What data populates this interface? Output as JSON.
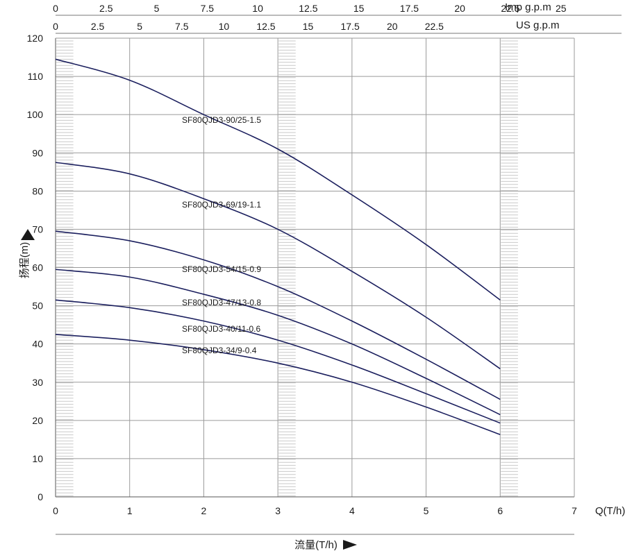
{
  "chart_data": {
    "type": "line",
    "title": "",
    "xlabel": "流量(T/h)",
    "xunit_label": "Q(T/h)",
    "ylabel": "扬程(m)",
    "xlim": [
      0,
      7
    ],
    "ylim": [
      0,
      120
    ],
    "x_ticks": [
      "0",
      "1",
      "2",
      "3",
      "4",
      "5",
      "6",
      "7"
    ],
    "y_ticks": [
      "0",
      "10",
      "20",
      "30",
      "40",
      "50",
      "60",
      "70",
      "80",
      "90",
      "100",
      "110",
      "120"
    ],
    "top_axes": [
      {
        "label": "Imp g.p.m",
        "ticks": [
          "0",
          "2.5",
          "5",
          "7.5",
          "10",
          "12.5",
          "15",
          "17.5",
          "20",
          "22.5",
          "25"
        ]
      },
      {
        "label": "US g.p.m",
        "ticks": [
          "0",
          "2.5",
          "5",
          "7.5",
          "10",
          "12.5",
          "15",
          "17.5",
          "20",
          "22.5"
        ]
      }
    ],
    "grid": true,
    "line_color": "#1b1f5e",
    "x": [
      0,
      1,
      2,
      3,
      4,
      5,
      6
    ],
    "series": [
      {
        "name": "SF80QJD3-90/25-1.5",
        "values": [
          114.5,
          109,
          100,
          91,
          79,
          66,
          51.5
        ]
      },
      {
        "name": "SF80QJD3-69/19-1.1",
        "values": [
          87.5,
          84.5,
          78,
          70,
          59,
          47,
          33.5
        ]
      },
      {
        "name": "SF80QJD3-54/15-0.9",
        "values": [
          69.5,
          67,
          62,
          55,
          46,
          36,
          25.5
        ]
      },
      {
        "name": "SF80QJD3-47/13-0.8",
        "values": [
          59.5,
          57.5,
          53,
          47.5,
          40,
          31,
          21.5
        ]
      },
      {
        "name": "SF80QJD3-40/11-0.6",
        "values": [
          51.5,
          49.5,
          46,
          41,
          34.5,
          27,
          19.3
        ]
      },
      {
        "name": "SF80QJD3-34/9-0.4",
        "values": [
          42.5,
          41,
          38.5,
          35,
          30,
          23.5,
          16.3
        ]
      }
    ]
  }
}
